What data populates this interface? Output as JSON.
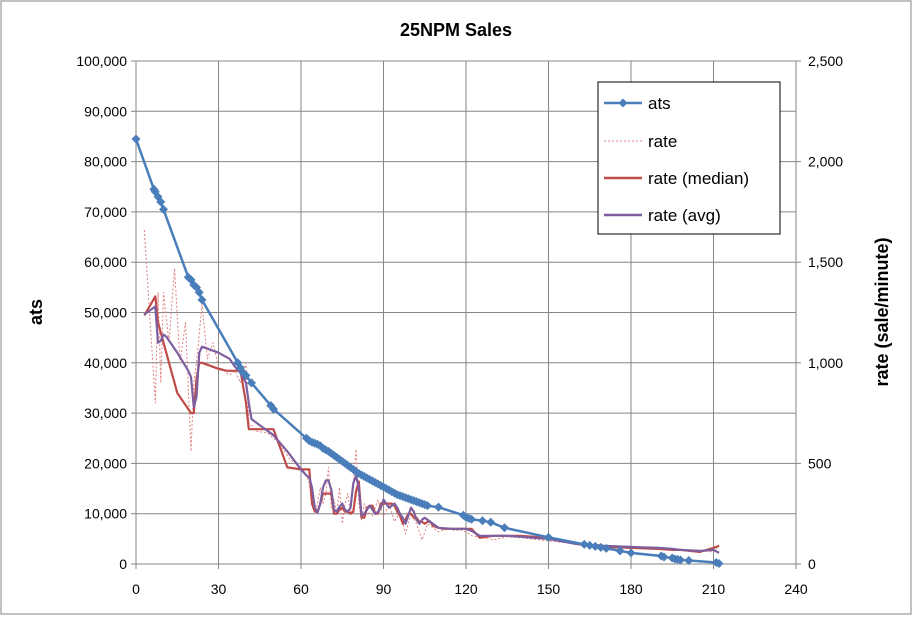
{
  "chart_data": {
    "type": "line",
    "title": "25NPM Sales",
    "xlabel": "",
    "ylabel": "ats",
    "y2label": "rate (sale/minute)",
    "xlim": [
      0,
      240
    ],
    "ylim": [
      0,
      100000
    ],
    "y2lim": [
      0,
      2500
    ],
    "xticks": [
      "0",
      "30",
      "60",
      "90",
      "120",
      "150",
      "180",
      "210",
      "240"
    ],
    "yticks": [
      "0",
      "10,000",
      "20,000",
      "30,000",
      "40,000",
      "50,000",
      "60,000",
      "70,000",
      "80,000",
      "90,000",
      "100,000"
    ],
    "y2ticks": [
      "0",
      "500",
      "1,000",
      "1,500",
      "2,000",
      "2,500"
    ],
    "grid": true,
    "legend_position": "top-right",
    "colors": {
      "ats": "#4a7ebb",
      "rate": "#e08080",
      "rate_median": "#be4b48",
      "rate_avg": "#7d5fa0",
      "grid": "#868686"
    },
    "series": [
      {
        "name": "ats",
        "axis": "left",
        "style": "line-diamond",
        "x": [
          0,
          6.5,
          7,
          8,
          9,
          10,
          19,
          20,
          21,
          22,
          23,
          24,
          37,
          38,
          39,
          40,
          42,
          49,
          50,
          62,
          63,
          64,
          65,
          66,
          67,
          68,
          69,
          70,
          71,
          72,
          73,
          74,
          75,
          76,
          77,
          78,
          79,
          80,
          81,
          82,
          83,
          84,
          85,
          86,
          87,
          88,
          89,
          90,
          91,
          92,
          93,
          94,
          95,
          96,
          97,
          98,
          99,
          100,
          101,
          102,
          103,
          104,
          105,
          106,
          110,
          119,
          120,
          121,
          122,
          126,
          129,
          134,
          150,
          163,
          165,
          167,
          169,
          171,
          176,
          180,
          191,
          192,
          195,
          196,
          197,
          198,
          201,
          211,
          212
        ],
        "values": [
          84500,
          74500,
          74000,
          73000,
          72000,
          70500,
          57000,
          56500,
          55500,
          55000,
          54000,
          52500,
          40000,
          39000,
          38000,
          37500,
          36000,
          31500,
          30800,
          25000,
          24500,
          24200,
          24000,
          23800,
          23500,
          23000,
          22700,
          22400,
          22000,
          21600,
          21200,
          20800,
          20400,
          20000,
          19600,
          19200,
          18800,
          18400,
          18000,
          17700,
          17400,
          17100,
          16800,
          16500,
          16200,
          15900,
          15600,
          15300,
          15000,
          14700,
          14400,
          14100,
          13800,
          13600,
          13400,
          13200,
          13000,
          12800,
          12600,
          12400,
          12200,
          12000,
          11800,
          11600,
          11300,
          9700,
          9300,
          9100,
          8900,
          8600,
          8300,
          7200,
          5300,
          3900,
          3700,
          3500,
          3300,
          3100,
          2600,
          2200,
          1600,
          1400,
          1200,
          1000,
          900,
          800,
          700,
          300,
          100
        ]
      },
      {
        "name": "rate",
        "axis": "right",
        "style": "dotted",
        "x": [
          3,
          7,
          8,
          9,
          10,
          12,
          14,
          16,
          18,
          20,
          21,
          22,
          24,
          26,
          28,
          30,
          34,
          36,
          38,
          40,
          41,
          44,
          48,
          52,
          56,
          60,
          62,
          63,
          64,
          65,
          66,
          67,
          68,
          69,
          70,
          71,
          72,
          73,
          74,
          75,
          76,
          77,
          78,
          79,
          80,
          81,
          82,
          83,
          84,
          86,
          88,
          90,
          92,
          94,
          96,
          98,
          100,
          102,
          104,
          106,
          108,
          110,
          112,
          114,
          116,
          118,
          120,
          122,
          126,
          130,
          135,
          140,
          150,
          160,
          170,
          180,
          190,
          200,
          205,
          210,
          212
        ],
        "values": [
          1660,
          800,
          1350,
          900,
          1350,
          1100,
          1470,
          1000,
          1200,
          560,
          900,
          1000,
          1290,
          1020,
          1100,
          980,
          940,
          960,
          900,
          1000,
          700,
          660,
          650,
          600,
          520,
          480,
          440,
          400,
          300,
          260,
          300,
          380,
          300,
          350,
          480,
          280,
          320,
          250,
          380,
          200,
          300,
          350,
          250,
          400,
          570,
          300,
          220,
          300,
          260,
          240,
          320,
          230,
          300,
          210,
          260,
          150,
          250,
          200,
          120,
          200,
          180,
          160,
          170,
          175,
          165,
          170,
          160,
          140,
          130,
          120,
          135,
          130,
          115,
          100,
          95,
          85,
          75,
          70,
          65,
          60,
          95
        ]
      },
      {
        "name": "rate (median)",
        "axis": "right",
        "style": "solid",
        "x": [
          3,
          7,
          8,
          9,
          10,
          15,
          19,
          20,
          21,
          22,
          23,
          24,
          30,
          33,
          36,
          38,
          40,
          41,
          42,
          45,
          50,
          55,
          60,
          62,
          63,
          64,
          65,
          66,
          67,
          68,
          69,
          70,
          71,
          72,
          73,
          74,
          75,
          76,
          77,
          78,
          79,
          80,
          81,
          82,
          83,
          84,
          85,
          86,
          87,
          88,
          89,
          90,
          91,
          92,
          93,
          94,
          95,
          96,
          97,
          98,
          99,
          100,
          101,
          102,
          103,
          104,
          105,
          106,
          107,
          108,
          110,
          112,
          115,
          120,
          121,
          122,
          125,
          130,
          135,
          140,
          150,
          160,
          170,
          180,
          190,
          195,
          198,
          205,
          210,
          212
        ],
        "values": [
          1235,
          1330,
          1200,
          1150,
          1100,
          850,
          770,
          750,
          750,
          920,
          1000,
          1000,
          970,
          960,
          960,
          960,
          800,
          670,
          670,
          670,
          670,
          480,
          470,
          470,
          470,
          300,
          260,
          260,
          300,
          350,
          350,
          350,
          350,
          250,
          250,
          270,
          280,
          260,
          260,
          250,
          260,
          360,
          410,
          230,
          230,
          280,
          290,
          290,
          250,
          250,
          300,
          300,
          300,
          300,
          300,
          290,
          260,
          240,
          200,
          220,
          250,
          250,
          230,
          230,
          210,
          210,
          200,
          210,
          210,
          190,
          180,
          175,
          175,
          175,
          175,
          175,
          130,
          140,
          140,
          140,
          130,
          100,
          85,
          80,
          75,
          70,
          70,
          60,
          80,
          90
        ]
      },
      {
        "name": "rate (avg)",
        "axis": "right",
        "style": "solid",
        "x": [
          3,
          5,
          7,
          8,
          9,
          10,
          11,
          15,
          19,
          20,
          21,
          22,
          23,
          24,
          26,
          30,
          34,
          36,
          38,
          40,
          41,
          42,
          45,
          50,
          55,
          60,
          62,
          63,
          64,
          65,
          66,
          67,
          68,
          69,
          70,
          71,
          72,
          73,
          74,
          75,
          76,
          77,
          78,
          79,
          80,
          81,
          82,
          83,
          84,
          85,
          86,
          87,
          88,
          89,
          90,
          91,
          92,
          93,
          94,
          95,
          96,
          97,
          98,
          99,
          100,
          101,
          102,
          103,
          104,
          105,
          106,
          107,
          108,
          110,
          115,
          120,
          122,
          125,
          130,
          135,
          140,
          150,
          160,
          170,
          180,
          190,
          195,
          198,
          205,
          210,
          212
        ],
        "values": [
          1240,
          1260,
          1280,
          1100,
          1110,
          1140,
          1130,
          1050,
          960,
          930,
          780,
          830,
          1050,
          1080,
          1070,
          1050,
          1020,
          980,
          950,
          900,
          800,
          720,
          690,
          640,
          560,
          470,
          440,
          430,
          380,
          280,
          255,
          300,
          380,
          415,
          415,
          370,
          270,
          260,
          285,
          300,
          270,
          260,
          280,
          400,
          440,
          380,
          240,
          250,
          270,
          290,
          270,
          250,
          260,
          280,
          320,
          300,
          280,
          290,
          300,
          280,
          250,
          230,
          200,
          240,
          280,
          260,
          220,
          200,
          220,
          230,
          220,
          210,
          200,
          180,
          175,
          175,
          165,
          140,
          140,
          140,
          135,
          125,
          100,
          90,
          85,
          80,
          75,
          70,
          65,
          70,
          55
        ]
      }
    ]
  }
}
